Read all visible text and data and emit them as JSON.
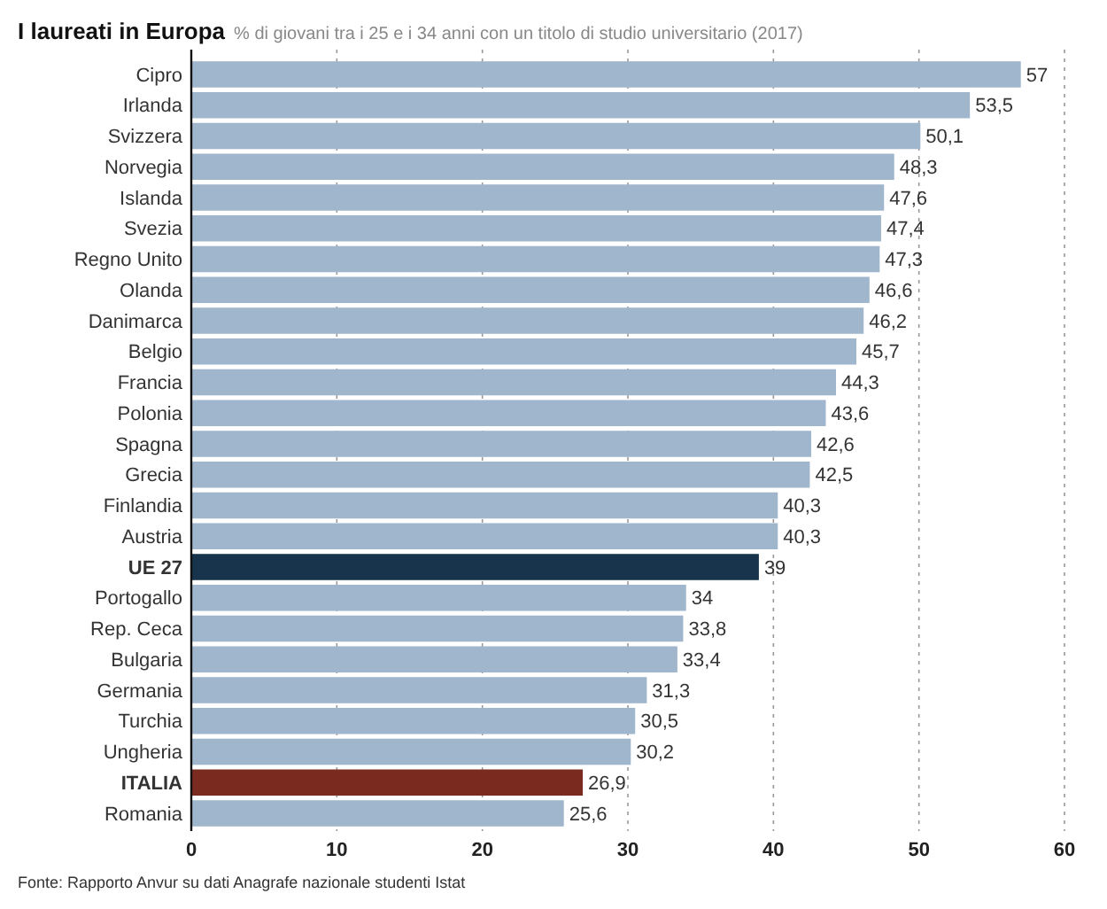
{
  "chart_data": {
    "type": "bar",
    "orientation": "horizontal",
    "title": "I laureati in Europa",
    "subtitle": "% di giovani tra i 25 e i 34 anni con un titolo di studio universitario (2017)",
    "categories": [
      "Cipro",
      "Irlanda",
      "Svizzera",
      "Norvegia",
      "Islanda",
      "Svezia",
      "Regno Unito",
      "Olanda",
      "Danimarca",
      "Belgio",
      "Francia",
      "Polonia",
      "Spagna",
      "Grecia",
      "Finlandia",
      "Austria",
      "UE 27",
      "Portogallo",
      "Rep. Ceca",
      "Bulgaria",
      "Germania",
      "Turchia",
      "Ungheria",
      "ITALIA",
      "Romania"
    ],
    "values": [
      57,
      53.5,
      50.1,
      48.3,
      47.6,
      47.4,
      47.3,
      46.6,
      46.2,
      45.7,
      44.3,
      43.6,
      42.6,
      42.5,
      40.3,
      40.3,
      39,
      34,
      33.8,
      33.4,
      31.3,
      30.5,
      30.2,
      26.9,
      25.6
    ],
    "value_labels": [
      "57",
      "53,5",
      "50,1",
      "48,3",
      "47,6",
      "47,4",
      "47,3",
      "46,6",
      "46,2",
      "45,7",
      "44,3",
      "43,6",
      "42,6",
      "42,5",
      "40,3",
      "40,3",
      "39",
      "34",
      "33,8",
      "33,4",
      "31,3",
      "30,5",
      "30,2",
      "26,9",
      "25,6"
    ],
    "colors": [
      "#9fb6cc",
      "#9fb6cc",
      "#9fb6cc",
      "#9fb6cc",
      "#9fb6cc",
      "#9fb6cc",
      "#9fb6cc",
      "#9fb6cc",
      "#9fb6cc",
      "#9fb6cc",
      "#9fb6cc",
      "#9fb6cc",
      "#9fb6cc",
      "#9fb6cc",
      "#9fb6cc",
      "#9fb6cc",
      "#17344c",
      "#9fb6cc",
      "#9fb6cc",
      "#9fb6cc",
      "#9fb6cc",
      "#9fb6cc",
      "#9fb6cc",
      "#7a2a1e",
      "#9fb6cc"
    ],
    "xlim": [
      0,
      60
    ],
    "xticks": [
      0,
      10,
      20,
      30,
      40,
      50,
      60
    ],
    "grid": "x",
    "annotations": [
      "Fonte: Rapporto Anvur su dati Anagrafe nazionale studenti Istat"
    ]
  }
}
